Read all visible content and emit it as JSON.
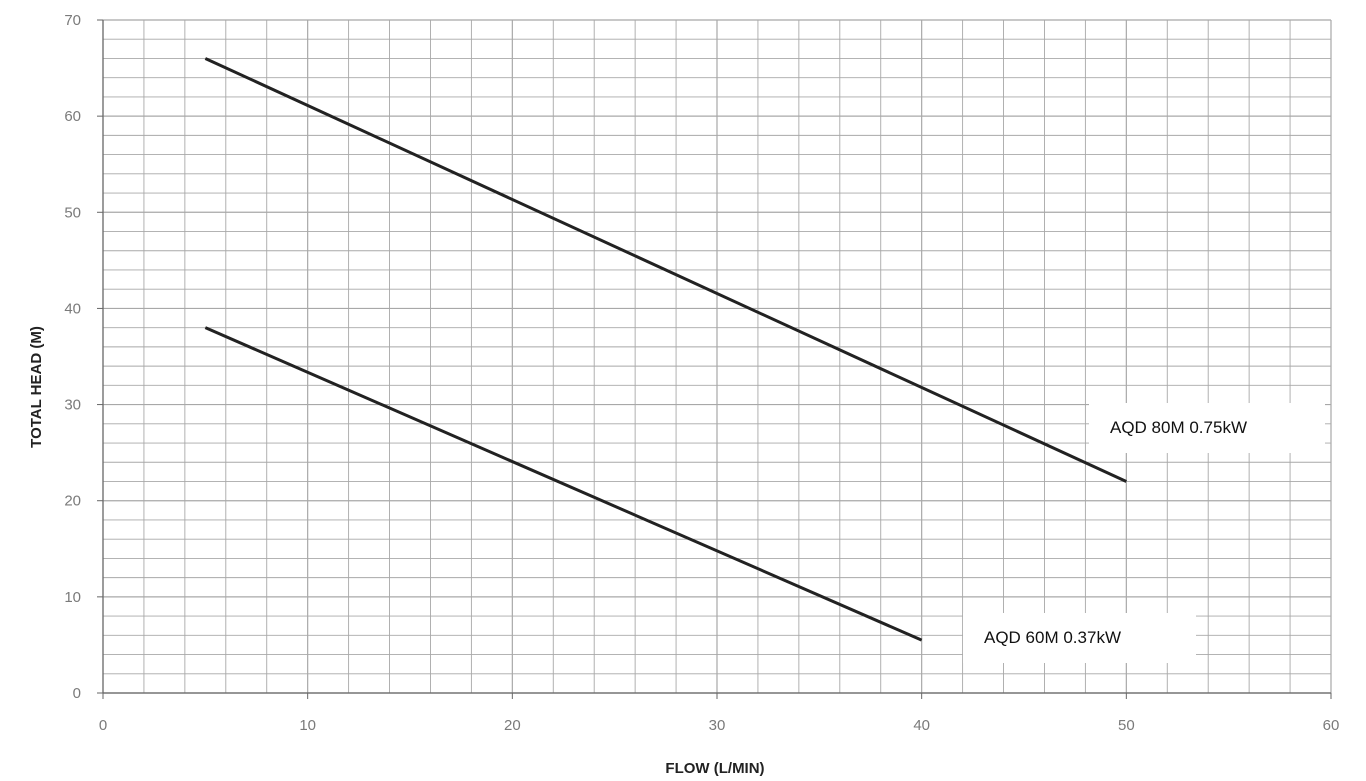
{
  "chart_data": {
    "type": "line",
    "title": "",
    "xlabel": "FLOW (L/MIN)",
    "ylabel": "TOTAL HEAD (M)",
    "xlim": [
      0,
      60
    ],
    "ylim": [
      0,
      70
    ],
    "x_ticks": [
      0,
      10,
      20,
      30,
      40,
      50,
      60
    ],
    "y_ticks": [
      0,
      10,
      20,
      30,
      40,
      50,
      60,
      70
    ],
    "x_minor_step": 2,
    "y_minor_step": 2,
    "grid": true,
    "legend": "none",
    "series": [
      {
        "name": "AQD 80M 0.75kW",
        "x": [
          5,
          50
        ],
        "y": [
          66,
          22
        ]
      },
      {
        "name": "AQD 60M 0.37kW",
        "x": [
          5,
          40
        ],
        "y": [
          38,
          5.5
        ]
      }
    ],
    "colors": {
      "line": "#222222",
      "grid": "#a8a8a8",
      "tick_text": "#7a7a7a"
    }
  }
}
